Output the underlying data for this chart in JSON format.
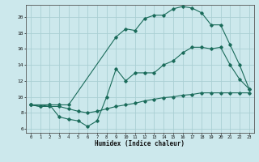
{
  "xlabel": "Humidex (Indice chaleur)",
  "background_color": "#cce8ec",
  "grid_color": "#aacfd4",
  "line_color": "#1a6b5a",
  "xlim": [
    -0.5,
    23.5
  ],
  "ylim": [
    5.5,
    21.5
  ],
  "xticks": [
    0,
    1,
    2,
    3,
    4,
    5,
    6,
    7,
    8,
    9,
    10,
    11,
    12,
    13,
    14,
    15,
    16,
    17,
    18,
    19,
    20,
    21,
    22,
    23
  ],
  "yticks": [
    6,
    8,
    10,
    12,
    14,
    16,
    18,
    20
  ],
  "curve1_x": [
    0,
    1,
    2,
    3,
    4,
    9,
    10,
    11,
    12,
    13,
    14,
    15,
    16,
    17,
    18,
    19,
    20,
    21,
    22,
    23
  ],
  "curve1_y": [
    9.0,
    8.8,
    9.0,
    9.0,
    9.0,
    17.5,
    18.5,
    18.3,
    19.8,
    20.2,
    20.2,
    21.0,
    21.3,
    21.1,
    20.5,
    19.0,
    19.0,
    16.5,
    14.0,
    11.0
  ],
  "curve2_x": [
    0,
    2,
    3,
    4,
    5,
    6,
    7,
    8,
    9,
    10,
    11,
    12,
    13,
    14,
    15,
    16,
    17,
    18,
    19,
    20,
    21,
    22,
    23
  ],
  "curve2_y": [
    9.0,
    9.0,
    7.5,
    7.2,
    7.0,
    6.3,
    7.0,
    10.0,
    13.5,
    12.0,
    13.0,
    13.0,
    13.0,
    14.0,
    14.5,
    15.5,
    16.2,
    16.2,
    16.0,
    16.2,
    14.0,
    12.2,
    11.0
  ],
  "curve3_x": [
    0,
    1,
    2,
    3,
    4,
    5,
    6,
    7,
    8,
    9,
    10,
    11,
    12,
    13,
    14,
    15,
    16,
    17,
    18,
    19,
    20,
    21,
    22,
    23
  ],
  "curve3_y": [
    9.0,
    8.8,
    8.8,
    8.8,
    8.5,
    8.2,
    8.0,
    8.2,
    8.5,
    8.8,
    9.0,
    9.2,
    9.5,
    9.7,
    9.9,
    10.0,
    10.2,
    10.3,
    10.5,
    10.5,
    10.5,
    10.5,
    10.5,
    10.5
  ]
}
